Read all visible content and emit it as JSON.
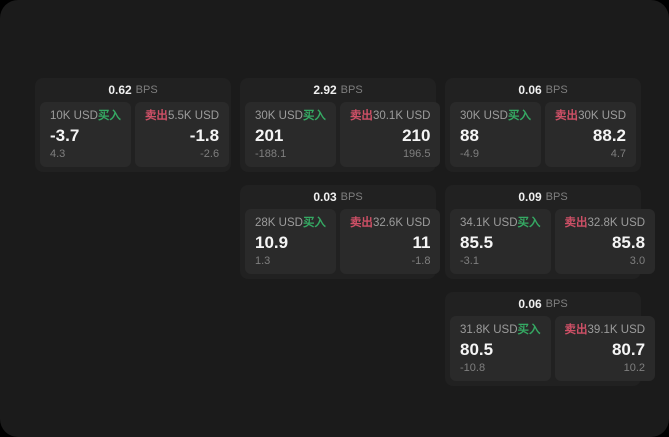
{
  "labels": {
    "buy": "买入",
    "sell": "卖出",
    "bps": "BPS"
  },
  "colors": {
    "buy": "#35a963",
    "sell": "#ce5066",
    "page_background": "#1b1b1b",
    "card_background": "#212121",
    "panel_background": "#2a2a2a"
  },
  "cards": [
    {
      "spread": "0.62",
      "buy": {
        "amount": "10K USD",
        "price": "-3.7",
        "delta": "4.3"
      },
      "sell": {
        "amount": "5.5K USD",
        "price": "-1.8",
        "delta": "-2.6"
      }
    },
    {
      "spread": "2.92",
      "buy": {
        "amount": "30K USD",
        "price": "201",
        "delta": "-188.1"
      },
      "sell": {
        "amount": "30.1K USD",
        "price": "210",
        "delta": "196.5"
      }
    },
    {
      "spread": "0.06",
      "buy": {
        "amount": "30K USD",
        "price": "88",
        "delta": "-4.9"
      },
      "sell": {
        "amount": "30K USD",
        "price": "88.2",
        "delta": "4.7"
      }
    },
    {
      "spread": "0.03",
      "buy": {
        "amount": "28K USD",
        "price": "10.9",
        "delta": "1.3"
      },
      "sell": {
        "amount": "32.6K USD",
        "price": "11",
        "delta": "-1.8"
      }
    },
    {
      "spread": "0.09",
      "buy": {
        "amount": "34.1K USD",
        "price": "85.5",
        "delta": "-3.1"
      },
      "sell": {
        "amount": "32.8K USD",
        "price": "85.8",
        "delta": "3.0"
      }
    },
    {
      "spread": "0.06",
      "buy": {
        "amount": "31.8K USD",
        "price": "80.5",
        "delta": "-10.8"
      },
      "sell": {
        "amount": "39.1K USD",
        "price": "80.7",
        "delta": "10.2"
      }
    }
  ]
}
